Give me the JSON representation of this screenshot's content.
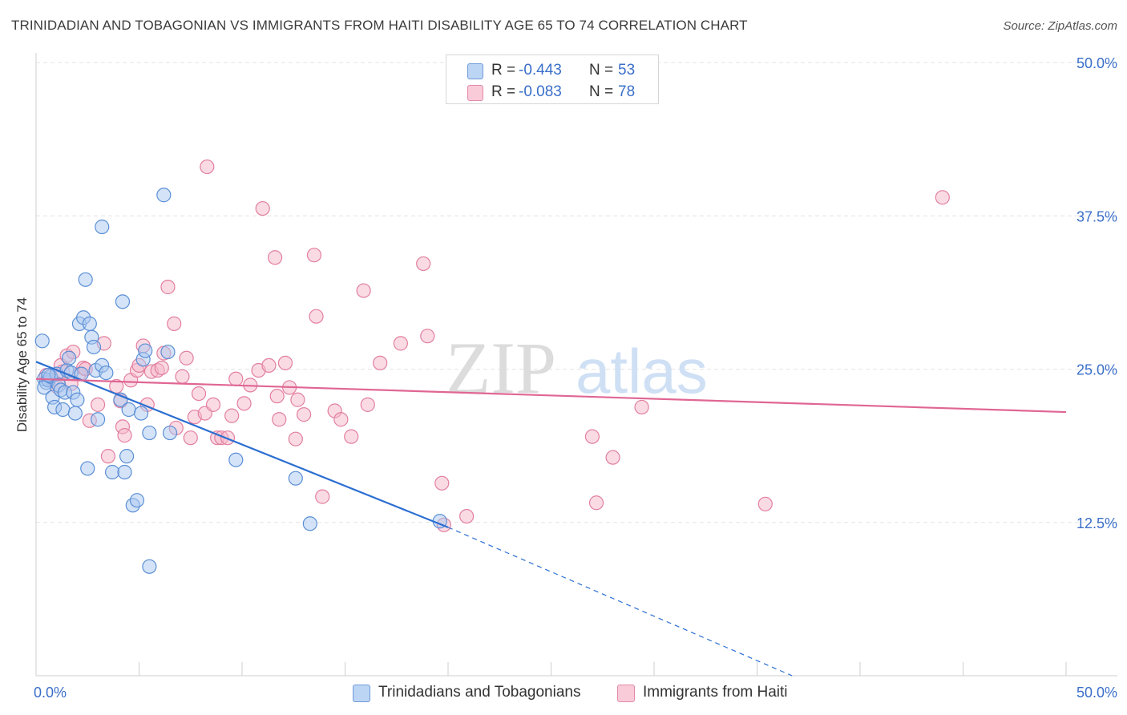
{
  "header": {
    "title": "TRINIDADIAN AND TOBAGONIAN VS IMMIGRANTS FROM HAITI DISABILITY AGE 65 TO 74 CORRELATION CHART",
    "source": "Source: ZipAtlas.com"
  },
  "watermark": {
    "zip": "ZIP",
    "atlas": "atlas"
  },
  "legend": {
    "series1": {
      "r_label": "R = ",
      "r_value": "-0.443",
      "n_label": "N = ",
      "n_value": "53"
    },
    "series2": {
      "r_label": "R = ",
      "r_value": "-0.083",
      "n_label": "N = ",
      "n_value": "78"
    }
  },
  "colors": {
    "series1_fill": "#a9c8f0",
    "series1_stroke": "#5b8fd6",
    "series1_line": "#2b6fd1",
    "series2_fill": "#f6b8ca",
    "series2_stroke": "#e27fa0",
    "series2_line": "#e06693",
    "grid": "#e3e3e3",
    "axis_text": "#3a6fc9"
  },
  "chart_data": {
    "type": "scatter",
    "ylabel": "Disability Age 65 to 74",
    "x_tick_labels": [
      "0.0%",
      "50.0%"
    ],
    "y_tick_labels": [
      "12.5%",
      "25.0%",
      "37.5%",
      "50.0%"
    ],
    "y_ticks": [
      12.5,
      25.0,
      37.5,
      50.0
    ],
    "xlim": [
      0,
      50
    ],
    "ylim": [
      0,
      50
    ],
    "grid": true,
    "series": [
      {
        "name": "Trinidadians and Tobagonians",
        "r": -0.443,
        "n": 53,
        "trend": {
          "x0": 0.0,
          "y0": 25.6,
          "x1": 20.0,
          "y1": 12.1,
          "dash_to_x": 36.7,
          "dash_to_y": 0.0
        },
        "points": [
          [
            0.4,
            24.2
          ],
          [
            0.5,
            23.9
          ],
          [
            0.6,
            24.1
          ],
          [
            0.4,
            23.5
          ],
          [
            0.7,
            24.4
          ],
          [
            0.8,
            22.7
          ],
          [
            0.9,
            21.9
          ],
          [
            1.0,
            24.6
          ],
          [
            1.1,
            23.7
          ],
          [
            1.2,
            23.3
          ],
          [
            1.3,
            21.7
          ],
          [
            1.4,
            23.1
          ],
          [
            1.5,
            24.9
          ],
          [
            1.6,
            25.9
          ],
          [
            1.7,
            24.7
          ],
          [
            1.8,
            23.1
          ],
          [
            1.9,
            21.4
          ],
          [
            2.0,
            22.5
          ],
          [
            2.1,
            28.7
          ],
          [
            2.3,
            29.2
          ],
          [
            2.4,
            32.3
          ],
          [
            2.6,
            28.7
          ],
          [
            2.7,
            27.6
          ],
          [
            2.8,
            26.8
          ],
          [
            2.9,
            24.9
          ],
          [
            3.0,
            20.9
          ],
          [
            3.2,
            25.3
          ],
          [
            3.4,
            24.7
          ],
          [
            3.2,
            36.6
          ],
          [
            2.5,
            16.9
          ],
          [
            3.7,
            16.6
          ],
          [
            4.1,
            22.5
          ],
          [
            4.2,
            30.5
          ],
          [
            4.3,
            16.6
          ],
          [
            4.4,
            17.9
          ],
          [
            4.5,
            21.7
          ],
          [
            4.7,
            13.9
          ],
          [
            4.9,
            14.3
          ],
          [
            5.1,
            21.4
          ],
          [
            5.2,
            25.8
          ],
          [
            5.3,
            26.5
          ],
          [
            5.5,
            19.8
          ],
          [
            5.5,
            8.9
          ],
          [
            6.2,
            39.2
          ],
          [
            6.4,
            26.4
          ],
          [
            6.5,
            19.8
          ],
          [
            9.7,
            17.6
          ],
          [
            12.6,
            16.1
          ],
          [
            13.3,
            12.4
          ],
          [
            19.6,
            12.6
          ],
          [
            0.3,
            27.3
          ],
          [
            0.6,
            24.5
          ],
          [
            2.2,
            24.6
          ]
        ]
      },
      {
        "name": "Immigrants from Haiti",
        "r": -0.083,
        "n": 78,
        "trend": {
          "x0": 0.0,
          "y0": 24.2,
          "x1": 50.0,
          "y1": 21.5
        },
        "points": [
          [
            0.5,
            24.5
          ],
          [
            0.8,
            24.1
          ],
          [
            1.0,
            23.6
          ],
          [
            1.2,
            25.3
          ],
          [
            1.3,
            24.8
          ],
          [
            1.5,
            26.1
          ],
          [
            1.7,
            23.8
          ],
          [
            2.1,
            24.6
          ],
          [
            2.3,
            25.1
          ],
          [
            2.6,
            20.8
          ],
          [
            3.0,
            22.1
          ],
          [
            3.3,
            27.1
          ],
          [
            3.5,
            17.9
          ],
          [
            3.9,
            23.6
          ],
          [
            4.1,
            22.4
          ],
          [
            4.2,
            20.3
          ],
          [
            4.3,
            19.6
          ],
          [
            4.6,
            24.1
          ],
          [
            4.9,
            24.9
          ],
          [
            5.0,
            25.3
          ],
          [
            5.2,
            26.9
          ],
          [
            5.4,
            22.1
          ],
          [
            5.6,
            24.8
          ],
          [
            5.9,
            24.9
          ],
          [
            6.1,
            25.1
          ],
          [
            6.2,
            26.3
          ],
          [
            6.4,
            31.7
          ],
          [
            6.7,
            28.7
          ],
          [
            7.1,
            24.4
          ],
          [
            7.3,
            25.9
          ],
          [
            7.5,
            19.4
          ],
          [
            7.7,
            21.1
          ],
          [
            7.9,
            23.0
          ],
          [
            8.2,
            21.4
          ],
          [
            8.3,
            41.5
          ],
          [
            8.6,
            22.1
          ],
          [
            8.8,
            19.4
          ],
          [
            9.0,
            19.4
          ],
          [
            9.3,
            19.4
          ],
          [
            9.5,
            21.2
          ],
          [
            9.7,
            24.2
          ],
          [
            10.1,
            22.2
          ],
          [
            10.4,
            23.7
          ],
          [
            10.8,
            24.9
          ],
          [
            11.0,
            38.1
          ],
          [
            11.3,
            25.3
          ],
          [
            11.6,
            34.1
          ],
          [
            11.8,
            20.9
          ],
          [
            12.1,
            25.5
          ],
          [
            12.3,
            23.5
          ],
          [
            12.6,
            19.3
          ],
          [
            12.7,
            22.5
          ],
          [
            13.0,
            21.3
          ],
          [
            13.5,
            34.3
          ],
          [
            13.6,
            29.3
          ],
          [
            13.9,
            14.6
          ],
          [
            14.5,
            21.6
          ],
          [
            14.8,
            20.9
          ],
          [
            15.3,
            19.5
          ],
          [
            15.9,
            31.4
          ],
          [
            16.1,
            22.1
          ],
          [
            16.7,
            25.5
          ],
          [
            17.7,
            27.1
          ],
          [
            18.8,
            33.6
          ],
          [
            19.0,
            27.7
          ],
          [
            19.7,
            15.7
          ],
          [
            19.8,
            12.3
          ],
          [
            20.9,
            13.0
          ],
          [
            27.0,
            19.5
          ],
          [
            27.2,
            14.1
          ],
          [
            28.0,
            17.8
          ],
          [
            29.4,
            21.9
          ],
          [
            35.4,
            14.0
          ],
          [
            44.0,
            39.0
          ],
          [
            2.4,
            25.0
          ],
          [
            6.8,
            20.2
          ],
          [
            1.8,
            26.4
          ],
          [
            11.7,
            22.8
          ]
        ]
      }
    ]
  }
}
